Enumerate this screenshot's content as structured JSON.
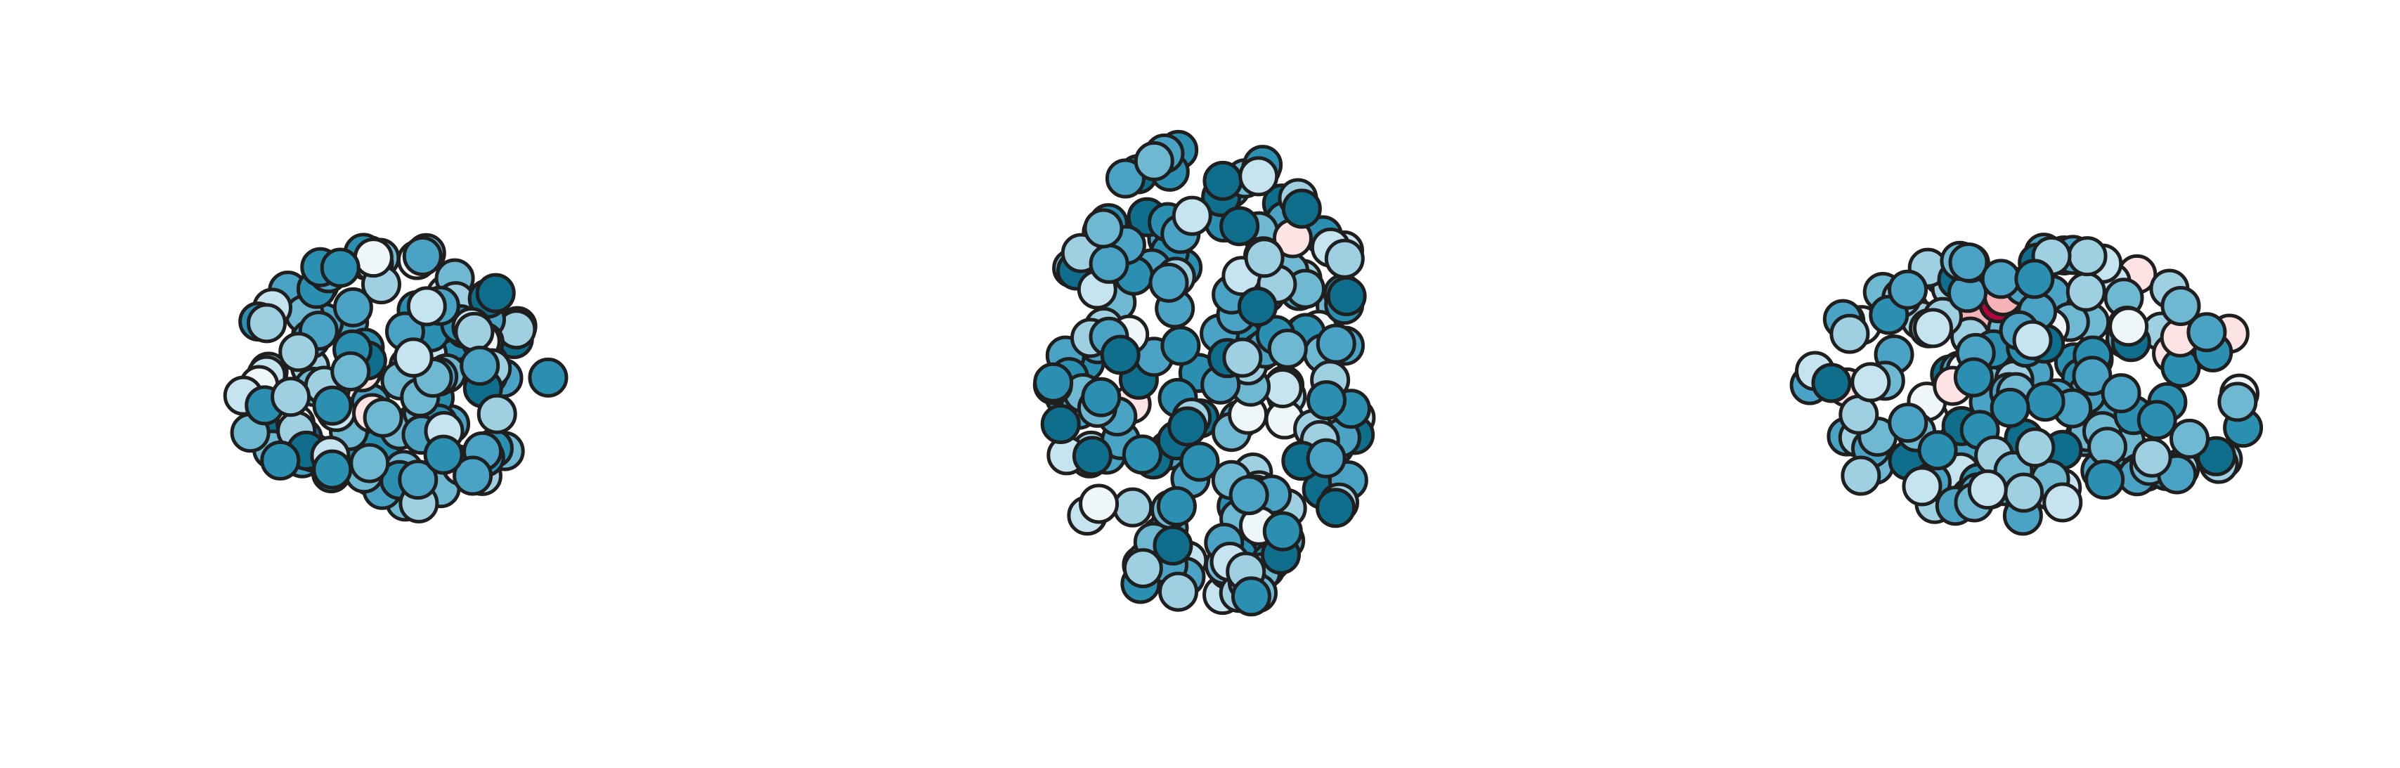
{
  "colors": [
    "#0f6e8c",
    "#2a8fb0",
    "#4aa3c4",
    "#6fb8d2",
    "#9fd0e2",
    "#c6e4ef",
    "#eef6f9",
    "#fde3e3",
    "#f6b3b8",
    "#b3063f"
  ],
  "weights": [
    8,
    20,
    26,
    18,
    14,
    8,
    4,
    2,
    1,
    0.3
  ]
}
